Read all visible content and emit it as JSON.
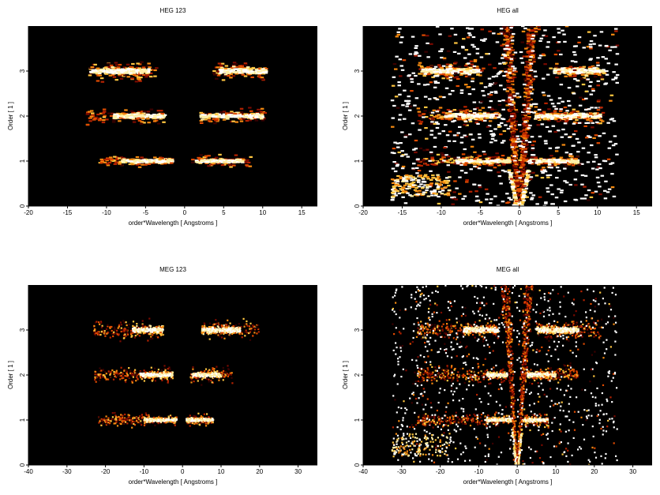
{
  "figure": {
    "background": "#ffffff",
    "plot_background": "#000000",
    "colormap": [
      "#3a0000",
      "#7a0a00",
      "#b52200",
      "#e04a00",
      "#f58a10",
      "#ffc640",
      "#fff0a8",
      "#ffffff"
    ]
  },
  "chart_data": [
    {
      "type": "heatmap",
      "title": "HEG 123",
      "xlabel": "order*Wavelength [ Angstroms ]",
      "ylabel": "Order [ 1 ]",
      "xlim": [
        -20,
        17
      ],
      "ylim": [
        0,
        4
      ],
      "xticks": [
        -20,
        -15,
        -10,
        -5,
        0,
        5,
        10,
        15
      ],
      "yticks": [
        0,
        1,
        2,
        3
      ],
      "bands": [
        {
          "order": 1,
          "x_ranges": [
            [
              -11,
              -1.5
            ],
            [
              1,
              8.5
            ]
          ],
          "dense_ranges": [
            [
              -8,
              -1.5
            ],
            [
              1.5,
              7.5
            ]
          ]
        },
        {
          "order": 2,
          "x_ranges": [
            [
              -12.5,
              -2.5
            ],
            [
              2,
              10.5
            ]
          ],
          "dense_ranges": [
            [
              -9,
              -2.5
            ],
            [
              2,
              10
            ]
          ]
        },
        {
          "order": 3,
          "x_ranges": [
            [
              -12.5,
              -3.5
            ],
            [
              3.5,
              10.5
            ]
          ],
          "dense_ranges": [
            [
              -12,
              -4.5
            ],
            [
              4.5,
              10.5
            ]
          ]
        }
      ],
      "cone": false
    },
    {
      "type": "heatmap",
      "title": "HEG all",
      "xlabel": "order*Wavelength [ Angstroms ]",
      "ylabel": "Order [ 1 ]",
      "xlim": [
        -20,
        17
      ],
      "ylim": [
        0,
        4
      ],
      "xticks": [
        -20,
        -15,
        -10,
        -5,
        0,
        5,
        10,
        15
      ],
      "yticks": [
        0,
        1,
        2,
        3
      ],
      "bands": [
        {
          "order": 1,
          "x_ranges": [
            [
              -13,
              -1.2
            ],
            [
              1,
              8
            ]
          ],
          "dense_ranges": [
            [
              -8,
              -1.2
            ],
            [
              1,
              7.5
            ]
          ]
        },
        {
          "order": 2,
          "x_ranges": [
            [
              -13,
              -2.5
            ],
            [
              2,
              11
            ]
          ],
          "dense_ranges": [
            [
              -9.5,
              -2.5
            ],
            [
              2,
              10.5
            ]
          ]
        },
        {
          "order": 3,
          "x_ranges": [
            [
              -13,
              -5
            ],
            [
              4.5,
              11
            ]
          ],
          "dense_ranges": [
            [
              -12.5,
              -5
            ],
            [
              4.5,
              11
            ]
          ]
        }
      ],
      "cone": true
    },
    {
      "type": "heatmap",
      "title": "MEG 123",
      "xlabel": "order*Wavelength [ Angstroms ]",
      "ylabel": "Order [ 1 ]",
      "xlim": [
        -40,
        35
      ],
      "ylim": [
        0,
        4
      ],
      "xticks": [
        -40,
        -30,
        -20,
        -10,
        0,
        10,
        20,
        30
      ],
      "yticks": [
        0,
        1,
        2,
        3
      ],
      "bands": [
        {
          "order": 1,
          "x_ranges": [
            [
              -22,
              -1.5
            ],
            [
              1,
              8
            ]
          ],
          "dense_ranges": [
            [
              -10,
              -1.5
            ],
            [
              1,
              8
            ]
          ]
        },
        {
          "order": 2,
          "x_ranges": [
            [
              -23,
              -2.5
            ],
            [
              2,
              13
            ]
          ],
          "dense_ranges": [
            [
              -11,
              -2.5
            ],
            [
              2.5,
              10
            ]
          ]
        },
        {
          "order": 3,
          "x_ranges": [
            [
              -23,
              -5
            ],
            [
              5,
              20
            ]
          ],
          "dense_ranges": [
            [
              -13,
              -5
            ],
            [
              5,
              15
            ]
          ]
        }
      ],
      "cone": false
    },
    {
      "type": "heatmap",
      "title": "MEG all",
      "xlabel": "order*Wavelength [ Angstroms ]",
      "ylabel": "Order [ 1 ]",
      "xlim": [
        -40,
        35
      ],
      "ylim": [
        0,
        4
      ],
      "xticks": [
        -40,
        -30,
        -20,
        -10,
        0,
        10,
        20,
        30
      ],
      "yticks": [
        0,
        1,
        2,
        3
      ],
      "bands": [
        {
          "order": 1,
          "x_ranges": [
            [
              -26,
              -1.5
            ],
            [
              1,
              8
            ]
          ],
          "dense_ranges": [
            [
              -8,
              -1.5
            ],
            [
              1,
              8
            ]
          ]
        },
        {
          "order": 2,
          "x_ranges": [
            [
              -26,
              -2.5
            ],
            [
              2,
              16
            ]
          ],
          "dense_ranges": [
            [
              -8,
              -2.5
            ],
            [
              2.5,
              10
            ]
          ]
        },
        {
          "order": 3,
          "x_ranges": [
            [
              -26,
              -5
            ],
            [
              5,
              22
            ]
          ],
          "dense_ranges": [
            [
              -14,
              -5
            ],
            [
              5,
              16
            ]
          ]
        }
      ],
      "cone": true
    }
  ]
}
